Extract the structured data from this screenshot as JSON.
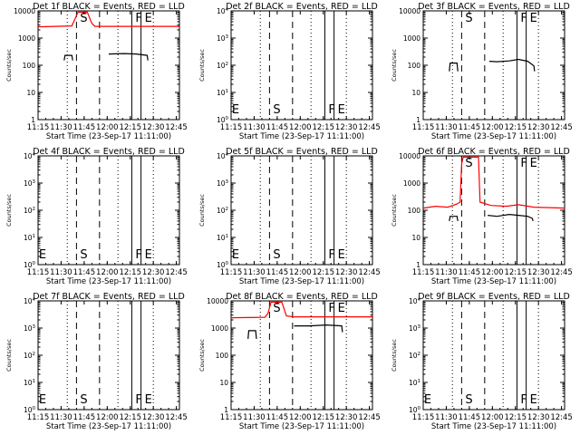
{
  "figure": {
    "xlabel": "Start Time (23-Sep-17 11:11:00)",
    "ylabel": "Counts/sec",
    "x_tick_labels": [
      "11:15",
      "11:30",
      "11:45",
      "12:00",
      "12:15",
      "12:30",
      "12:45"
    ],
    "colors": {
      "events": "#000000",
      "lld": "#ff0000"
    }
  },
  "chart_data": [
    {
      "type": "line",
      "title": "Det 1f BLACK = Events, RED = LLD",
      "xlabel": "Start Time (23-Sep-17 11:11:00)",
      "ylabel": "Counts/sec",
      "x_unit": "minutes after 11:11:00",
      "xlim": [
        4,
        96
      ],
      "yscale": "log",
      "ylim": [
        1,
        10000
      ],
      "y_tick_labels": [
        "1",
        "10",
        "100",
        "1000",
        "10000"
      ],
      "markers": [
        {
          "x": 23,
          "style": "dotted",
          "label": ""
        },
        {
          "x": 29,
          "style": "dashed",
          "label": "S"
        },
        {
          "x": 44,
          "style": "dashed",
          "label": ""
        },
        {
          "x": 56,
          "style": "dotted",
          "label": ""
        },
        {
          "x": 65,
          "style": "solid",
          "label": "F"
        },
        {
          "x": 71,
          "style": "solid",
          "label": "E"
        },
        {
          "x": 79,
          "style": "dotted",
          "label": ""
        }
      ],
      "series": [
        {
          "role": "lld",
          "segments": [
            [
              [
                4,
                2600
              ],
              [
                26,
                2800
              ],
              [
                28,
                5000
              ],
              [
                30,
                9000
              ],
              [
                36,
                9000
              ],
              [
                39,
                3500
              ],
              [
                41,
                2700
              ],
              [
                96,
                2700
              ]
            ]
          ]
        },
        {
          "role": "events",
          "segments": [
            [
              [
                21,
                150
              ],
              [
                21.5,
                230
              ],
              [
                26,
                230
              ],
              [
                26.5,
                150
              ]
            ],
            [
              [
                50,
                260
              ],
              [
                60,
                270
              ],
              [
                68,
                260
              ],
              [
                75,
                230
              ],
              [
                75.5,
                150
              ]
            ]
          ]
        }
      ]
    },
    {
      "type": "line",
      "title": "Det 2f BLACK = Events, RED = LLD",
      "xlabel": "Start Time (23-Sep-17 11:11:00)",
      "ylabel": "Counts/sec",
      "x_unit": "minutes after 11:11:00",
      "xlim": [
        4,
        96
      ],
      "yscale": "log",
      "ylim": [
        1,
        10000
      ],
      "y_tick_labels": [
        "10^0",
        "10^1",
        "10^2",
        "10^3",
        "10^4"
      ],
      "markers": [
        {
          "x": 4.5,
          "style": "none",
          "label": "E"
        },
        {
          "x": 23,
          "style": "dotted",
          "label": ""
        },
        {
          "x": 29,
          "style": "dashed",
          "label": "S"
        },
        {
          "x": 44,
          "style": "dashed",
          "label": ""
        },
        {
          "x": 56,
          "style": "dotted",
          "label": ""
        },
        {
          "x": 65,
          "style": "solid",
          "label": "F"
        },
        {
          "x": 71,
          "style": "solid",
          "label": "E"
        },
        {
          "x": 79,
          "style": "dotted",
          "label": ""
        }
      ],
      "series": []
    },
    {
      "type": "line",
      "title": "Det 3f BLACK = Events, RED = LLD",
      "xlabel": "Start Time (23-Sep-17 11:11:00)",
      "ylabel": "Counts/sec",
      "x_unit": "minutes after 11:11:00",
      "xlim": [
        4,
        96
      ],
      "yscale": "log",
      "ylim": [
        1,
        10000
      ],
      "y_tick_labels": [
        "1",
        "10",
        "100",
        "1000",
        "10000"
      ],
      "markers": [
        {
          "x": 23,
          "style": "dotted",
          "label": ""
        },
        {
          "x": 29,
          "style": "dashed",
          "label": "S"
        },
        {
          "x": 44,
          "style": "dashed",
          "label": ""
        },
        {
          "x": 56,
          "style": "dotted",
          "label": ""
        },
        {
          "x": 65,
          "style": "solid",
          "label": "F"
        },
        {
          "x": 71,
          "style": "solid",
          "label": "E"
        },
        {
          "x": 79,
          "style": "dotted",
          "label": ""
        }
      ],
      "series": [
        {
          "role": "events",
          "segments": [
            [
              [
                21,
                60
              ],
              [
                21.5,
                120
              ],
              [
                26,
                120
              ],
              [
                26.5,
                60
              ]
            ],
            [
              [
                47,
                140
              ],
              [
                52,
                135
              ],
              [
                60,
                145
              ],
              [
                66,
                165
              ],
              [
                72,
                140
              ],
              [
                76,
                95
              ],
              [
                76.5,
                60
              ]
            ]
          ]
        }
      ]
    },
    {
      "type": "line",
      "title": "Det 4f BLACK = Events, RED = LLD",
      "xlabel": "Start Time (23-Sep-17 11:11:00)",
      "ylabel": "Counts/sec",
      "x_unit": "minutes after 11:11:00",
      "xlim": [
        4,
        96
      ],
      "yscale": "log",
      "ylim": [
        1,
        10000
      ],
      "y_tick_labels": [
        "10^0",
        "10^1",
        "10^2",
        "10^3",
        "10^4"
      ],
      "markers": [
        {
          "x": 4.5,
          "style": "none",
          "label": "E"
        },
        {
          "x": 23,
          "style": "dotted",
          "label": ""
        },
        {
          "x": 29,
          "style": "dashed",
          "label": "S"
        },
        {
          "x": 44,
          "style": "dashed",
          "label": ""
        },
        {
          "x": 56,
          "style": "dotted",
          "label": ""
        },
        {
          "x": 65,
          "style": "solid",
          "label": "F"
        },
        {
          "x": 71,
          "style": "solid",
          "label": "E"
        },
        {
          "x": 79,
          "style": "dotted",
          "label": ""
        }
      ],
      "series": []
    },
    {
      "type": "line",
      "title": "Det 5f BLACK = Events, RED = LLD",
      "xlabel": "Start Time (23-Sep-17 11:11:00)",
      "ylabel": "Counts/sec",
      "x_unit": "minutes after 11:11:00",
      "xlim": [
        4,
        96
      ],
      "yscale": "log",
      "ylim": [
        1,
        10000
      ],
      "y_tick_labels": [
        "10^0",
        "10^1",
        "10^2",
        "10^3",
        "10^4"
      ],
      "markers": [
        {
          "x": 4.5,
          "style": "none",
          "label": "E"
        },
        {
          "x": 23,
          "style": "dotted",
          "label": ""
        },
        {
          "x": 29,
          "style": "dashed",
          "label": "S"
        },
        {
          "x": 44,
          "style": "dashed",
          "label": ""
        },
        {
          "x": 56,
          "style": "dotted",
          "label": ""
        },
        {
          "x": 65,
          "style": "solid",
          "label": "F"
        },
        {
          "x": 71,
          "style": "solid",
          "label": "E"
        },
        {
          "x": 79,
          "style": "dotted",
          "label": ""
        }
      ],
      "series": []
    },
    {
      "type": "line",
      "title": "Det 6f BLACK = Events, RED = LLD",
      "xlabel": "Start Time (23-Sep-17 11:11:00)",
      "ylabel": "Counts/sec",
      "x_unit": "minutes after 11:11:00",
      "xlim": [
        4,
        96
      ],
      "yscale": "log",
      "ylim": [
        1,
        10000
      ],
      "y_tick_labels": [
        "1",
        "10",
        "100",
        "1000",
        "10000"
      ],
      "markers": [
        {
          "x": 23,
          "style": "dotted",
          "label": ""
        },
        {
          "x": 29,
          "style": "dashed",
          "label": "S"
        },
        {
          "x": 44,
          "style": "dashed",
          "label": ""
        },
        {
          "x": 56,
          "style": "dotted",
          "label": ""
        },
        {
          "x": 65,
          "style": "solid",
          "label": "F"
        },
        {
          "x": 71,
          "style": "solid",
          "label": "E"
        },
        {
          "x": 79,
          "style": "dotted",
          "label": ""
        }
      ],
      "series": [
        {
          "role": "lld",
          "segments": [
            [
              [
                4,
                120
              ],
              [
                12,
                140
              ],
              [
                20,
                130
              ],
              [
                26,
                170
              ],
              [
                28,
                200
              ],
              [
                29,
                5000
              ],
              [
                30,
                9000
              ],
              [
                40,
                9000
              ],
              [
                41,
                200
              ],
              [
                48,
                150
              ],
              [
                58,
                140
              ],
              [
                66,
                160
              ],
              [
                76,
                130
              ],
              [
                86,
                125
              ],
              [
                96,
                120
              ]
            ]
          ]
        },
        {
          "role": "events",
          "segments": [
            [
              [
                21,
                40
              ],
              [
                21.5,
                60
              ],
              [
                26,
                60
              ],
              [
                26.5,
                40
              ]
            ],
            [
              [
                46,
                65
              ],
              [
                52,
                60
              ],
              [
                60,
                70
              ],
              [
                66,
                65
              ],
              [
                72,
                60
              ],
              [
                75,
                50
              ],
              [
                75.5,
                40
              ]
            ]
          ]
        }
      ]
    },
    {
      "type": "line",
      "title": "Det 7f BLACK = Events, RED = LLD",
      "xlabel": "Start Time (23-Sep-17 11:11:00)",
      "ylabel": "Counts/sec",
      "x_unit": "minutes after 11:11:00",
      "xlim": [
        4,
        96
      ],
      "yscale": "log",
      "ylim": [
        1,
        10000
      ],
      "y_tick_labels": [
        "10^0",
        "10^1",
        "10^2",
        "10^3",
        "10^4"
      ],
      "markers": [
        {
          "x": 4.5,
          "style": "none",
          "label": "E"
        },
        {
          "x": 23,
          "style": "dotted",
          "label": ""
        },
        {
          "x": 29,
          "style": "dashed",
          "label": "S"
        },
        {
          "x": 44,
          "style": "dashed",
          "label": ""
        },
        {
          "x": 56,
          "style": "dotted",
          "label": ""
        },
        {
          "x": 65,
          "style": "solid",
          "label": "F"
        },
        {
          "x": 71,
          "style": "solid",
          "label": "E"
        },
        {
          "x": 79,
          "style": "dotted",
          "label": ""
        }
      ],
      "series": []
    },
    {
      "type": "line",
      "title": "Det 8f BLACK = Events, RED = LLD",
      "xlabel": "Start Time (23-Sep-17 11:11:00)",
      "ylabel": "Counts/sec",
      "x_unit": "minutes after 11:11:00",
      "xlim": [
        4,
        96
      ],
      "yscale": "log",
      "ylim": [
        1,
        10000
      ],
      "y_tick_labels": [
        "1",
        "10",
        "100",
        "1000",
        "10000"
      ],
      "markers": [
        {
          "x": 23,
          "style": "dotted",
          "label": ""
        },
        {
          "x": 29,
          "style": "dashed",
          "label": "S"
        },
        {
          "x": 44,
          "style": "dashed",
          "label": ""
        },
        {
          "x": 56,
          "style": "dotted",
          "label": ""
        },
        {
          "x": 65,
          "style": "solid",
          "label": "F"
        },
        {
          "x": 71,
          "style": "solid",
          "label": "E"
        },
        {
          "x": 79,
          "style": "dotted",
          "label": ""
        }
      ],
      "series": [
        {
          "role": "lld",
          "segments": [
            [
              [
                4,
                2400
              ],
              [
                26,
                2500
              ],
              [
                28,
                3500
              ],
              [
                30,
                9000
              ],
              [
                37,
                9000
              ],
              [
                40,
                2800
              ],
              [
                45,
                2600
              ],
              [
                96,
                2600
              ]
            ]
          ]
        },
        {
          "role": "events",
          "segments": [
            [
              [
                15,
                400
              ],
              [
                15.5,
                800
              ],
              [
                20,
                800
              ],
              [
                20.5,
                400
              ]
            ],
            [
              [
                45,
                1200
              ],
              [
                55,
                1200
              ],
              [
                66,
                1300
              ],
              [
                76,
                1200
              ],
              [
                76.5,
                700
              ]
            ]
          ]
        }
      ]
    },
    {
      "type": "line",
      "title": "Det 9f BLACK = Events, RED = LLD",
      "xlabel": "Start Time (23-Sep-17 11:11:00)",
      "ylabel": "Counts/sec",
      "x_unit": "minutes after 11:11:00",
      "xlim": [
        4,
        96
      ],
      "yscale": "log",
      "ylim": [
        1,
        10000
      ],
      "y_tick_labels": [
        "10^0",
        "10^1",
        "10^2",
        "10^3",
        "10^4"
      ],
      "markers": [
        {
          "x": 4.5,
          "style": "none",
          "label": "E"
        },
        {
          "x": 23,
          "style": "dotted",
          "label": ""
        },
        {
          "x": 29,
          "style": "dashed",
          "label": "S"
        },
        {
          "x": 44,
          "style": "dashed",
          "label": ""
        },
        {
          "x": 56,
          "style": "dotted",
          "label": ""
        },
        {
          "x": 65,
          "style": "solid",
          "label": "F"
        },
        {
          "x": 71,
          "style": "solid",
          "label": "E"
        },
        {
          "x": 79,
          "style": "dotted",
          "label": ""
        }
      ],
      "series": []
    }
  ]
}
